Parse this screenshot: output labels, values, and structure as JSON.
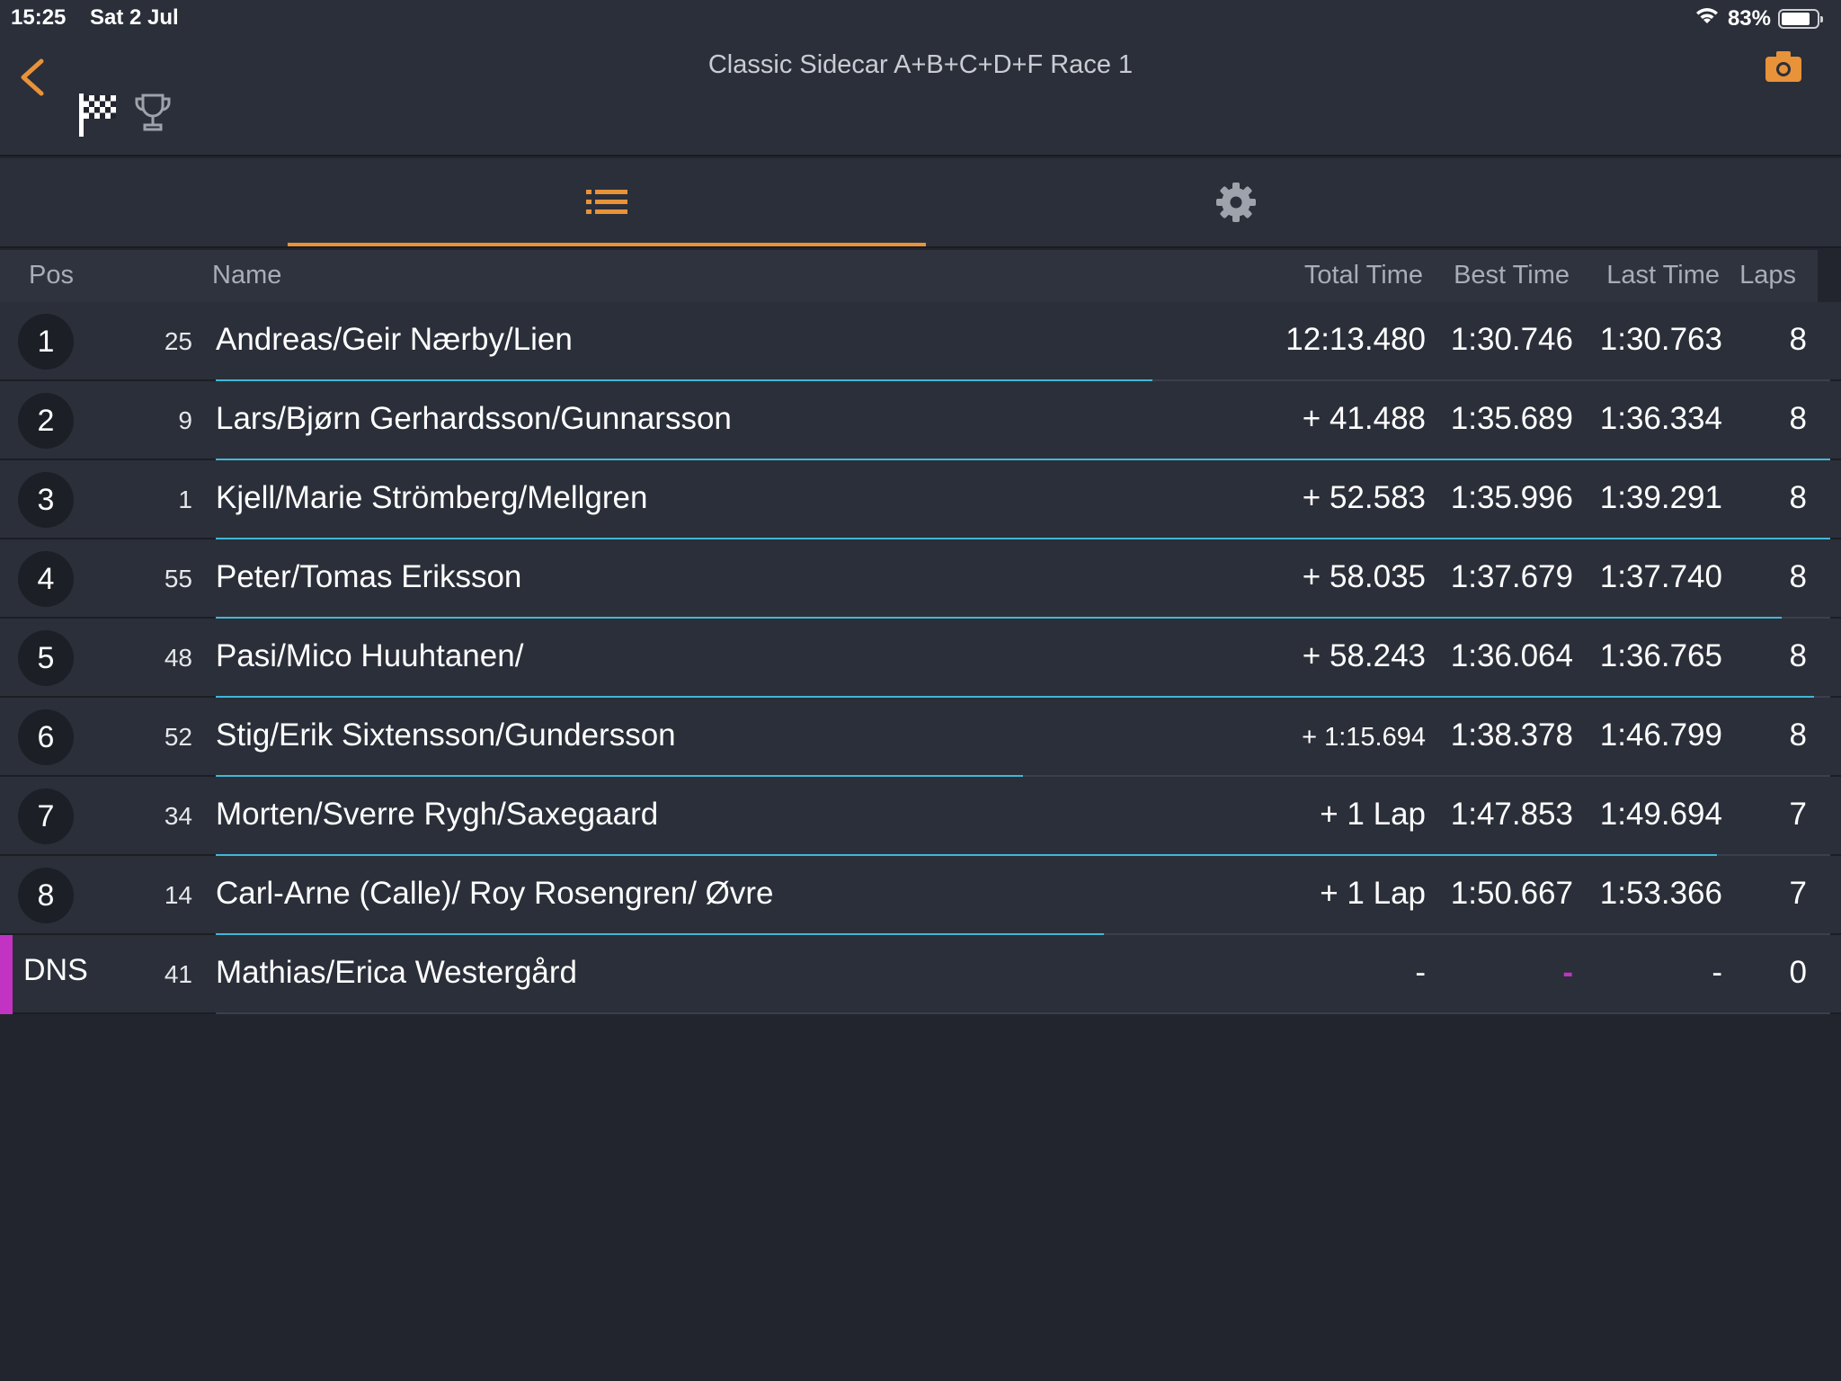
{
  "status_bar": {
    "time": "15:25",
    "date": "Sat 2 Jul",
    "battery": "83%",
    "battery_level": 0.83
  },
  "header": {
    "title": "Classic Sidecar A+B+C+D+F Race 1",
    "icons": [
      "back-chevron-icon",
      "checkered-flag-icon",
      "trophy-icon",
      "camera-icon"
    ]
  },
  "tabs": [
    "list-icon",
    "gear-icon"
  ],
  "columns": {
    "pos": "Pos",
    "name": "Name",
    "total": "Total Time",
    "best": "Best Time",
    "last": "Last Time",
    "laps": "Laps"
  },
  "colors": {
    "accent": "#e8923a",
    "progress": "#3fb8d6",
    "dns": "#c233c4"
  },
  "rows": [
    {
      "pos": "1",
      "num": "25",
      "name": "Andreas/Geir Nærby/Lien",
      "total": "12:13.480",
      "best": "1:30.746",
      "last": "1:30.763",
      "laps": "8",
      "progress": 0.58
    },
    {
      "pos": "2",
      "num": "9",
      "name": "Lars/Bjørn Gerhardsson/Gunnarsson",
      "total": "+ 41.488",
      "best": "1:35.689",
      "last": "1:36.334",
      "laps": "8",
      "progress": 1.0
    },
    {
      "pos": "3",
      "num": "1",
      "name": "Kjell/Marie Strömberg/Mellgren",
      "total": "+ 52.583",
      "best": "1:35.996",
      "last": "1:39.291",
      "laps": "8",
      "progress": 1.0
    },
    {
      "pos": "4",
      "num": "55",
      "name": "Peter/Tomas Eriksson",
      "total": "+ 58.035",
      "best": "1:37.679",
      "last": "1:37.740",
      "laps": "8",
      "progress": 0.97
    },
    {
      "pos": "5",
      "num": "48",
      "name": "Pasi/Mico Huuhtanen/",
      "total": "+ 58.243",
      "best": "1:36.064",
      "last": "1:36.765",
      "laps": "8",
      "progress": 0.99
    },
    {
      "pos": "6",
      "num": "52",
      "name": "Stig/Erik Sixtensson/Gundersson",
      "total": "+ 1:15.694",
      "best": "1:38.378",
      "last": "1:46.799",
      "laps": "8",
      "progress": 0.5
    },
    {
      "pos": "7",
      "num": "34",
      "name": "Morten/Sverre Rygh/Saxegaard",
      "total": "+ 1 Lap",
      "best": "1:47.853",
      "last": "1:49.694",
      "laps": "7",
      "progress": 0.93
    },
    {
      "pos": "8",
      "num": "14",
      "name": "Carl-Arne (Calle)/ Roy Rosengren/ Øvre",
      "total": "+ 1 Lap",
      "best": "1:50.667",
      "last": "1:53.366",
      "laps": "7",
      "progress": 0.55
    },
    {
      "pos": "DNS",
      "num": "41",
      "name": "Mathias/Erica Westergård",
      "total": "-",
      "best": "-",
      "last": "-",
      "laps": "0",
      "progress": 0,
      "dns": true
    }
  ]
}
